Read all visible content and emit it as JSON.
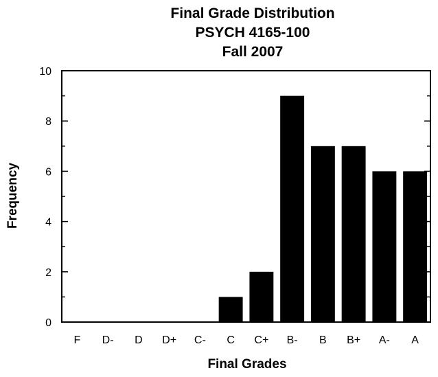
{
  "chart_data": {
    "type": "bar",
    "title_lines": [
      "Final Grade Distribution",
      "PSYCH 4165-100",
      "Fall 2007"
    ],
    "xlabel": "Final Grades",
    "ylabel": "Frequency",
    "categories": [
      "F",
      "D-",
      "D",
      "D+",
      "C-",
      "C",
      "C+",
      "B-",
      "B",
      "B+",
      "A-",
      "A"
    ],
    "values": [
      0,
      0,
      0,
      0,
      0,
      1,
      2,
      9,
      7,
      7,
      6,
      6
    ],
    "ylim": [
      0,
      10
    ],
    "yticks": [
      "0",
      "2",
      "4",
      "6",
      "8",
      "10"
    ],
    "ytick_values": [
      0,
      2,
      4,
      6,
      8,
      10
    ],
    "grid": false,
    "legend": false,
    "bar_color": "#000000"
  }
}
